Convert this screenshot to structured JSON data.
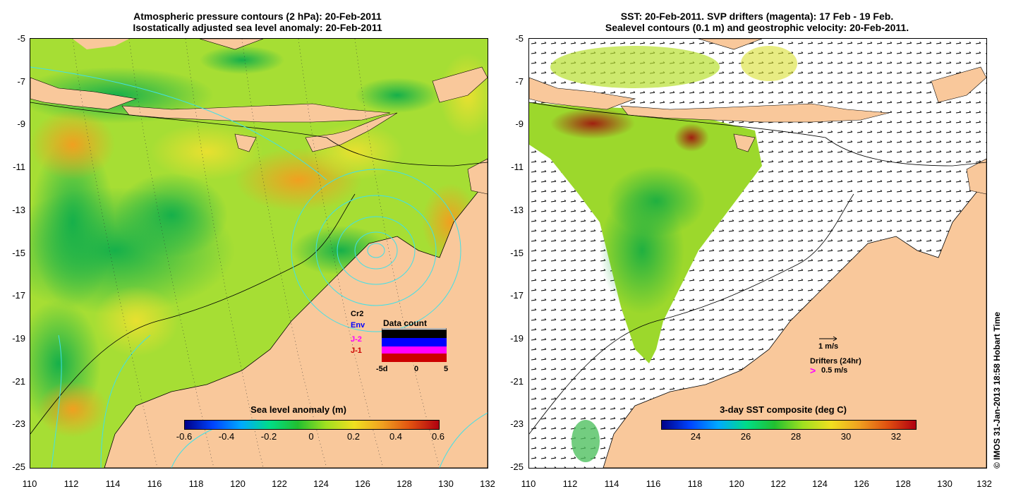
{
  "left_panel": {
    "title_line1": "Atmospheric pressure contours (2 hPa): 20-Feb-2011",
    "title_line2": "Isostatically adjusted sea level anomaly: 20-Feb-2011",
    "y_ticks": [
      "-5",
      "-7",
      "-9",
      "-11",
      "-13",
      "-15",
      "-17",
      "-19",
      "-21",
      "-23",
      "-25"
    ],
    "x_ticks": [
      "110",
      "112",
      "114",
      "116",
      "118",
      "120",
      "122",
      "124",
      "126",
      "128",
      "130",
      "132"
    ],
    "colorbar_title": "Sea level anomaly (m)",
    "colorbar_ticks": [
      "-0.6",
      "-0.4",
      "-0.2",
      "0",
      "0.2",
      "0.4",
      "0.6"
    ],
    "data_count": {
      "title": "Data count",
      "satellites": [
        "Cr2",
        "Env",
        "J-2",
        "J-1"
      ],
      "sat_colors": [
        "#000000",
        "#0000ff",
        "#ff00ff",
        "#cc0000"
      ],
      "x_ticks": [
        "-5d",
        "0",
        "5"
      ]
    }
  },
  "right_panel": {
    "title_line1": "SST: 20-Feb-2011. SVP drifters (magenta): 17 Feb - 19 Feb.",
    "title_line2": "Sealevel contours (0.1 m) and geostrophic velocity: 20-Feb-2011.",
    "y_ticks": [
      "-5",
      "-7",
      "-9",
      "-11",
      "-13",
      "-15",
      "-17",
      "-19",
      "-21",
      "-23",
      "-25"
    ],
    "x_ticks": [
      "110",
      "112",
      "114",
      "116",
      "118",
      "120",
      "122",
      "124",
      "126",
      "128",
      "130",
      "132"
    ],
    "colorbar_title": "3-day SST composite (deg C)",
    "colorbar_ticks": [
      "24",
      "26",
      "28",
      "30",
      "32"
    ],
    "legend_speed": "1 m/s",
    "legend_drifters": "Drifters (24hr)",
    "legend_drifter_speed": "0.5 m/s"
  },
  "credit": "© IMOS 31-Jan-2013 18:58 Hobart Time",
  "colors": {
    "land": "#f9c89b",
    "contour": "#40e0e8",
    "ocean_white": "#ffffff"
  }
}
